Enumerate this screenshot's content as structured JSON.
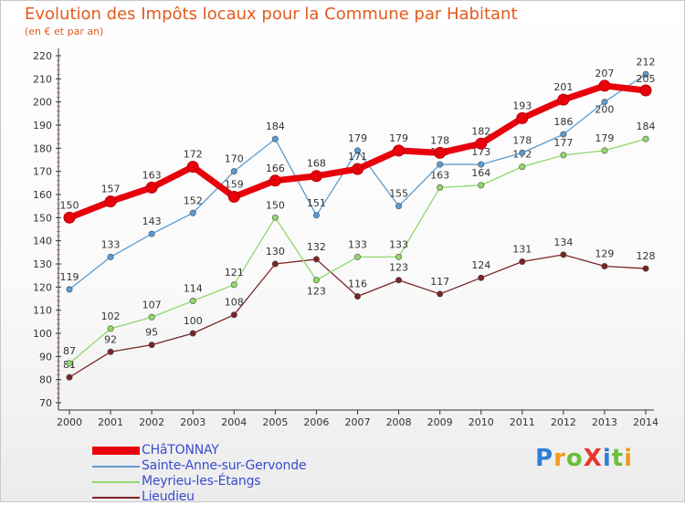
{
  "header": {
    "title": "Evolution des Impôts locaux pour la Commune par Habitant",
    "subtitle": "(en € et par an)"
  },
  "brand": {
    "text": "ProXiti",
    "colors": [
      "#2f7fd6",
      "#f39a1a",
      "#6abf3a",
      "#e8352d",
      "#2f7fd6",
      "#6abf3a",
      "#f39a1a"
    ]
  },
  "colors": {
    "title": "#e35a1d",
    "axis": "#333333",
    "legend_text": "#3a4ccd"
  },
  "chart_data": {
    "type": "line",
    "title": "Evolution des Impôts locaux pour la Commune par Habitant",
    "subtitle": "(en € et par an)",
    "x": [
      "2000",
      "2001",
      "2002",
      "2003",
      "2004",
      "2005",
      "2006",
      "2007",
      "2008",
      "2009",
      "2010",
      "2011",
      "2012",
      "2013",
      "2014"
    ],
    "ylim": [
      70,
      220
    ],
    "yticks": [
      70,
      80,
      90,
      100,
      110,
      120,
      130,
      140,
      150,
      160,
      170,
      180,
      190,
      200,
      210,
      220
    ],
    "grid": false,
    "legend_position": "bottom-left",
    "series": [
      {
        "name": "CHâTONNAY",
        "color": "#e8000b",
        "values": [
          150,
          157,
          163,
          172,
          159,
          166,
          168,
          171,
          179,
          178,
          182,
          193,
          201,
          207,
          205
        ]
      },
      {
        "name": "Sainte-Anne-sur-Gervonde",
        "color": "#5b9bd1",
        "values": [
          119,
          133,
          143,
          152,
          170,
          184,
          151,
          179,
          155,
          173,
          173,
          178,
          186,
          200,
          212
        ]
      },
      {
        "name": "Meyrieu-les-Étangs",
        "color": "#90d86a",
        "values": [
          87,
          102,
          107,
          114,
          121,
          150,
          123,
          133,
          133,
          163,
          164,
          172,
          177,
          179,
          184
        ]
      },
      {
        "name": "Lieudieu",
        "color": "#7a2424",
        "values": [
          81,
          92,
          95,
          100,
          108,
          130,
          132,
          116,
          123,
          117,
          124,
          131,
          134,
          129,
          128
        ]
      }
    ]
  }
}
